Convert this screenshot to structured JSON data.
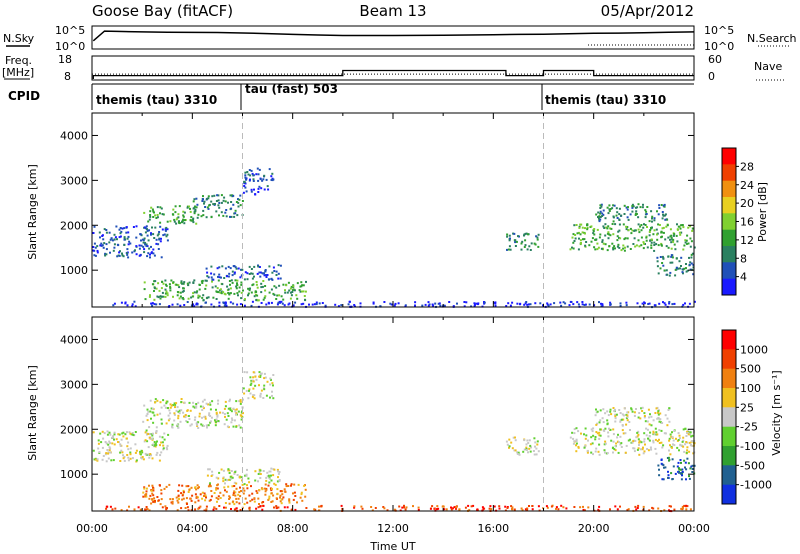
{
  "header": {
    "station": "Goose Bay (fitACF)",
    "beam": "Beam 13",
    "date": "05/Apr/2012"
  },
  "panel_labels": {
    "nsky": "N.Sky",
    "nsearch": "N.Search",
    "freq_line1": "Freq.",
    "freq_line2": "[MHz]",
    "nave": "Nave",
    "cpid": "CPID"
  },
  "colors": {
    "nsky_line": "#000000",
    "power_scale": [
      "#1a1aff",
      "#2050b8",
      "#2a8060",
      "#30a030",
      "#80d030",
      "#e8d020",
      "#f09010",
      "#f04000",
      "#ff0000"
    ],
    "velocity_scale": [
      "#1030e0",
      "#206090",
      "#30a030",
      "#60d030",
      "#c8c8c8",
      "#f0c020",
      "#f08010",
      "#f04000",
      "#ff0000"
    ]
  },
  "chart_data": [
    {
      "type": "line",
      "panel": "noise",
      "series": [
        {
          "name": "N.Sky",
          "x": [
            0.05,
            0.5,
            1.0,
            2.0,
            3.0,
            4.0,
            5.0,
            6.0,
            7.0,
            8.0,
            9.0,
            10.0,
            11.0,
            12.0,
            13.0,
            14.0,
            15.0,
            16.0,
            17.0,
            18.0,
            19.0,
            20.0,
            21.0,
            22.0,
            23.0,
            24.0
          ],
          "values": [
            100,
            50000,
            40000,
            30000,
            25000,
            22000,
            20000,
            15000,
            10000,
            6000,
            4000,
            3000,
            3000,
            3000,
            3200,
            3500,
            4000,
            5000,
            6000,
            7000,
            9000,
            12000,
            14000,
            18000,
            25000,
            30000
          ]
        }
      ],
      "y_tick_labels": [
        "10^5",
        "10^0"
      ],
      "right_tick_labels": [
        "10^5",
        "10^0"
      ]
    },
    {
      "type": "line",
      "panel": "frequency",
      "x_range": [
        0,
        24
      ],
      "series": [
        {
          "name": "Freq.",
          "x": [
            0.05,
            0.05,
            10.0,
            10.0,
            16.5,
            16.5,
            18.0,
            18.0,
            19.0,
            19.0,
            20.0,
            20.0,
            24.0
          ],
          "values": [
            8,
            10,
            10,
            13,
            13,
            10,
            10,
            13,
            13,
            13,
            13,
            10,
            10
          ]
        },
        {
          "name": "Nave",
          "x": [
            0,
            24
          ],
          "values": [
            17,
            17
          ]
        }
      ],
      "left_ticks": [
        "18",
        "8"
      ],
      "right_ticks": [
        "60",
        "0"
      ]
    },
    {
      "type": "table",
      "panel": "cpid",
      "segments": [
        {
          "start": 0.0,
          "label": "themis (tau) 3310"
        },
        {
          "start": 6.0,
          "label": "tau (fast) 503"
        },
        {
          "start": 18.0,
          "label": "themis (tau) 3310"
        }
      ]
    },
    {
      "type": "heatmap",
      "panel": "power",
      "ylabel": "Slant Range [km]",
      "xlim": [
        0,
        24
      ],
      "ylim": [
        180,
        4500
      ],
      "y_ticks": [
        1000,
        2000,
        3000,
        4000
      ],
      "colorbar_label": "Power [dB]",
      "colorbar_ticks": [
        "28",
        "24",
        "20",
        "16",
        "12",
        "8",
        "4"
      ],
      "bands": [
        {
          "t0": 0.0,
          "t1": 3.0,
          "r0": 1300,
          "r1": 2000,
          "level": 1
        },
        {
          "t0": 2.0,
          "t1": 4.2,
          "r0": 2050,
          "r1": 2450,
          "level": 3
        },
        {
          "t0": 4.0,
          "t1": 6.0,
          "r0": 2200,
          "r1": 2700,
          "level": 2
        },
        {
          "t0": 6.0,
          "t1": 7.2,
          "r0": 2700,
          "r1": 3300,
          "level": 1
        },
        {
          "t0": 2.0,
          "t1": 8.5,
          "r0": 350,
          "r1": 800,
          "level": 3
        },
        {
          "t0": 4.5,
          "t1": 7.5,
          "r0": 800,
          "r1": 1150,
          "level": 1
        },
        {
          "t0": 16.5,
          "t1": 17.8,
          "r0": 1450,
          "r1": 1850,
          "level": 2
        },
        {
          "t0": 19.0,
          "t1": 24.0,
          "r0": 1450,
          "r1": 2050,
          "level": 3
        },
        {
          "t0": 20.0,
          "t1": 23.0,
          "r0": 2100,
          "r1": 2500,
          "level": 2
        },
        {
          "t0": 22.5,
          "t1": 24.0,
          "r0": 900,
          "r1": 1400,
          "level": 2
        },
        {
          "t0": 0.5,
          "t1": 24.0,
          "r0": 200,
          "r1": 320,
          "level": 0
        }
      ]
    },
    {
      "type": "heatmap",
      "panel": "velocity",
      "ylabel": "Slant Range [km]",
      "xlabel": "Time UT",
      "xlim": [
        0,
        24
      ],
      "ylim": [
        180,
        4500
      ],
      "x_tick_labels": [
        "00:00",
        "04:00",
        "08:00",
        "12:00",
        "16:00",
        "20:00",
        "00:00"
      ],
      "y_ticks": [
        1000,
        2000,
        3000,
        4000
      ],
      "colorbar_label": "Velocity [m s⁻¹]",
      "colorbar_ticks": [
        "1000",
        "500",
        "100",
        "25",
        "-25",
        "-100",
        "-500",
        "-1000"
      ],
      "bands": [
        {
          "t0": 0.0,
          "t1": 3.0,
          "r0": 1300,
          "r1": 2000,
          "level": 4
        },
        {
          "t0": 2.0,
          "t1": 6.0,
          "r0": 2050,
          "r1": 2700,
          "level": 4
        },
        {
          "t0": 6.0,
          "t1": 7.2,
          "r0": 2700,
          "r1": 3300,
          "level": 4
        },
        {
          "t0": 2.0,
          "t1": 8.5,
          "r0": 350,
          "r1": 800,
          "level": 6
        },
        {
          "t0": 4.5,
          "t1": 7.5,
          "r0": 800,
          "r1": 1150,
          "level": 4
        },
        {
          "t0": 16.5,
          "t1": 17.8,
          "r0": 1450,
          "r1": 1850,
          "level": 4
        },
        {
          "t0": 19.0,
          "t1": 24.0,
          "r0": 1450,
          "r1": 2050,
          "level": 4
        },
        {
          "t0": 20.0,
          "t1": 23.0,
          "r0": 2100,
          "r1": 2500,
          "level": 4
        },
        {
          "t0": 22.5,
          "t1": 24.0,
          "r0": 900,
          "r1": 1400,
          "level": 1
        },
        {
          "t0": 0.5,
          "t1": 24.0,
          "r0": 200,
          "r1": 320,
          "level": 7
        }
      ]
    }
  ]
}
